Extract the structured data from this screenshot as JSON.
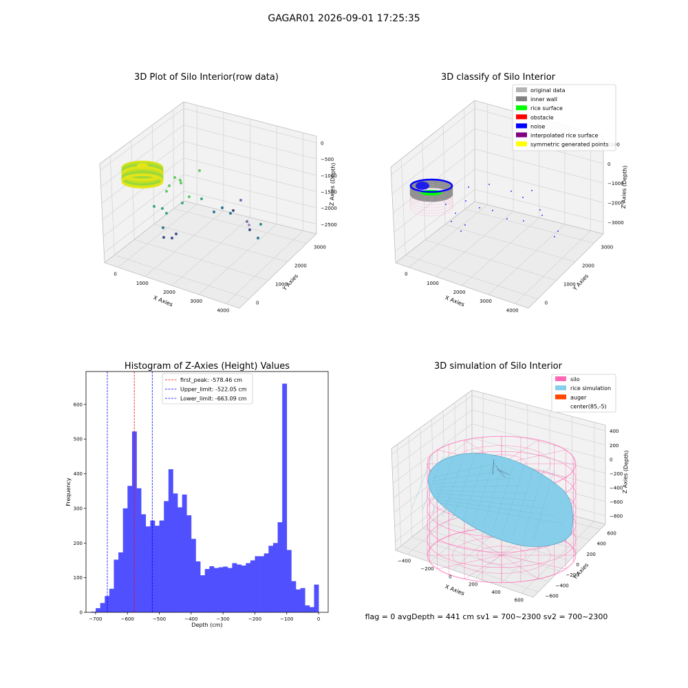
{
  "figure": {
    "suptitle": "GAGAR01 2026-09-01 17:25:35",
    "flag_text": "flag = 0     avgDepth = 441 cm  sv1 = 700~2300  sv2 = 700~2300"
  },
  "chart_data": [
    {
      "id": "raw3d",
      "type": "scatter",
      "title": "3D Plot of Silo Interior(row data)",
      "xlabel": "X Axies",
      "ylabel": "Y Axies",
      "zlabel": "Z Axies (Depth)",
      "xticks": [
        "0",
        "1000",
        "2000",
        "3000",
        "4000"
      ],
      "yticks": [
        "0",
        "1000",
        "2000",
        "3000"
      ],
      "zticks": [
        "0",
        "−500",
        "−1000",
        "−1500",
        "−2000",
        "−2500"
      ],
      "scatter_colors": [
        "#5ec962",
        "#3aa681",
        "#2a788e",
        "#3b528b",
        "#7a6fa8",
        "#9f8fb8",
        "#21918c"
      ]
    },
    {
      "id": "classify3d",
      "type": "scatter",
      "title": "3D classify of Silo Interior",
      "xlabel": "X Axies",
      "ylabel": "Y Axies",
      "zlabel": "Z Axies (Depth)",
      "xticks": [
        "0",
        "1000",
        "2000",
        "3000",
        "4000"
      ],
      "yticks": [
        "0",
        "1000",
        "2000",
        "3000"
      ],
      "zticks": [
        "1000",
        "0",
        "−1000",
        "−2000",
        "−3000"
      ],
      "legend": [
        {
          "label": "original data",
          "color": "#b3b3b3"
        },
        {
          "label": "inner wall",
          "color": "#808080"
        },
        {
          "label": "rice surface",
          "color": "#00ff00"
        },
        {
          "label": "obstacle",
          "color": "#ff0000"
        },
        {
          "label": "noise",
          "color": "#0000ff"
        },
        {
          "label": "interpolated rice surface",
          "color": "#800080"
        },
        {
          "label": "symmetric generated points",
          "color": "#ffff00"
        }
      ],
      "legend_loc": "upper-right"
    },
    {
      "id": "histogram",
      "type": "bar",
      "title": "Histogram of Z-Axies (Height) Values",
      "xlabel": "Depth (cm)",
      "ylabel": "Frequency",
      "xlim": [
        -730,
        30
      ],
      "ylim": [
        0,
        695
      ],
      "xticks": [
        -700,
        -600,
        -500,
        -400,
        -300,
        -200,
        -100,
        0
      ],
      "xtick_labels": [
        "−700",
        "−600",
        "−500",
        "−400",
        "−300",
        "−200",
        "−100",
        "0"
      ],
      "yticks": [
        0,
        100,
        200,
        300,
        400,
        500,
        600
      ],
      "bin_start": -714,
      "bin_width": 14.28,
      "values": [
        2,
        12,
        27,
        47,
        68,
        152,
        173,
        300,
        365,
        522,
        358,
        283,
        248,
        265,
        250,
        265,
        321,
        413,
        343,
        303,
        340,
        280,
        212,
        147,
        107,
        125,
        133,
        128,
        130,
        132,
        128,
        142,
        138,
        135,
        142,
        150,
        162,
        162,
        170,
        192,
        200,
        260,
        660,
        180,
        90,
        66,
        70,
        20,
        15,
        80
      ],
      "bar_color": "#5050ff",
      "lines": [
        {
          "label": "first_peak: -578.46 cm",
          "x": -578.46,
          "color": "#ff0000"
        },
        {
          "label": "Upper_limit: -522.05 cm",
          "x": -522.05,
          "color": "#0000ff"
        },
        {
          "label": "Lower_limit: -663.09 cm",
          "x": -663.09,
          "color": "#0000ff"
        }
      ],
      "legend_loc": "upper-center"
    },
    {
      "id": "simulation3d",
      "type": "scatter",
      "title": "3D simulation of Silo Interior",
      "xlabel": "X Axies",
      "ylabel": "Y Axies",
      "zlabel": "Z Axies (Depth)",
      "xticks": [
        "−400",
        "−200",
        "0",
        "200",
        "400",
        "600"
      ],
      "yticks": [
        "−600",
        "−400",
        "−200",
        "0",
        "200",
        "400",
        "600"
      ],
      "zticks": [
        "400",
        "200",
        "0",
        "−200",
        "−400",
        "−600",
        "−800"
      ],
      "legend": [
        {
          "label": "silo",
          "color": "#ff69b4"
        },
        {
          "label": "rice simulation",
          "color": "#87ceeb"
        },
        {
          "label": "auger",
          "color": "#ff4500"
        },
        {
          "label": "center(85,-5)",
          "color": "#ffffff"
        }
      ],
      "legend_loc": "upper-right"
    }
  ]
}
